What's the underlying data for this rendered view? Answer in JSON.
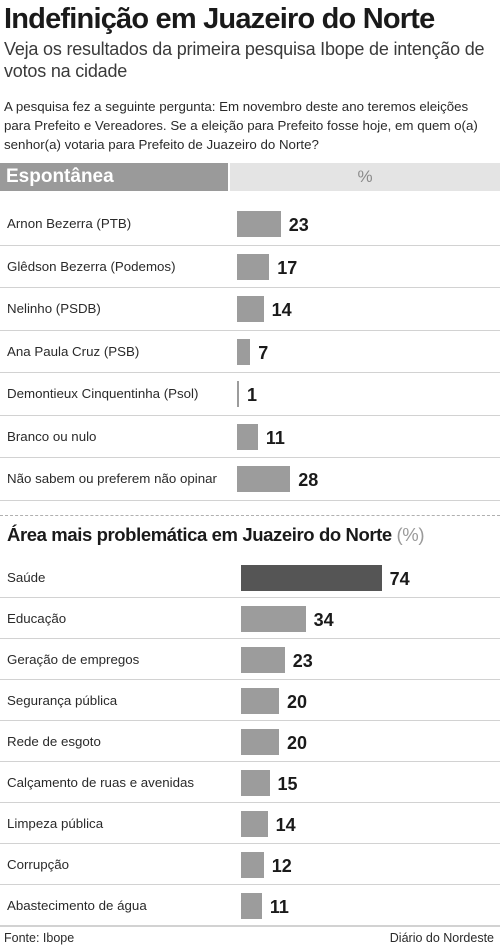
{
  "header": {
    "title": "Indefinição em Juazeiro do Norte",
    "subtitle": "Veja os resultados da primeira pesquisa Ibope de intenção de votos na cidade",
    "question": "A pesquisa fez a seguinte pergunta: Em novembro deste ano teremos eleições para Prefeito e Vereadores. Se a eleição para Prefeito fosse hoje, em quem o(a) senhor(a) votaria para Prefeito de Juazeiro do Norte?"
  },
  "chart_data": [
    {
      "type": "bar",
      "title": "Espontânea",
      "unit_label": "%",
      "categories": [
        "Arnon Bezerra (PTB)",
        "Glêdson Bezerra (Podemos)",
        "Nelinho (PSDB)",
        "Ana Paula Cruz (PSB)",
        "Demontieux Cinquentinha (Psol)",
        "Branco ou nulo",
        "Não sabem ou preferem não opinar"
      ],
      "values": [
        23,
        17,
        14,
        7,
        1,
        11,
        28
      ],
      "bar_color": "#9c9c9c"
    },
    {
      "type": "bar",
      "title": "Área mais problemática em Juazeiro do Norte",
      "unit_label": "(%)",
      "categories": [
        "Saúde",
        "Educação",
        "Geração de empregos",
        "Segurança pública",
        "Rede de esgoto",
        "Calçamento de ruas e avenidas",
        "Limpeza pública",
        "Corrupção",
        "Abastecimento de água"
      ],
      "values": [
        74,
        34,
        23,
        20,
        20,
        15,
        14,
        12,
        11
      ],
      "bar_color": "#9c9c9c",
      "highlight_color": "#555555",
      "highlight_index": 0
    }
  ],
  "footer": {
    "source": "Fonte: Ibope",
    "publisher": "Diário do Nordeste"
  }
}
